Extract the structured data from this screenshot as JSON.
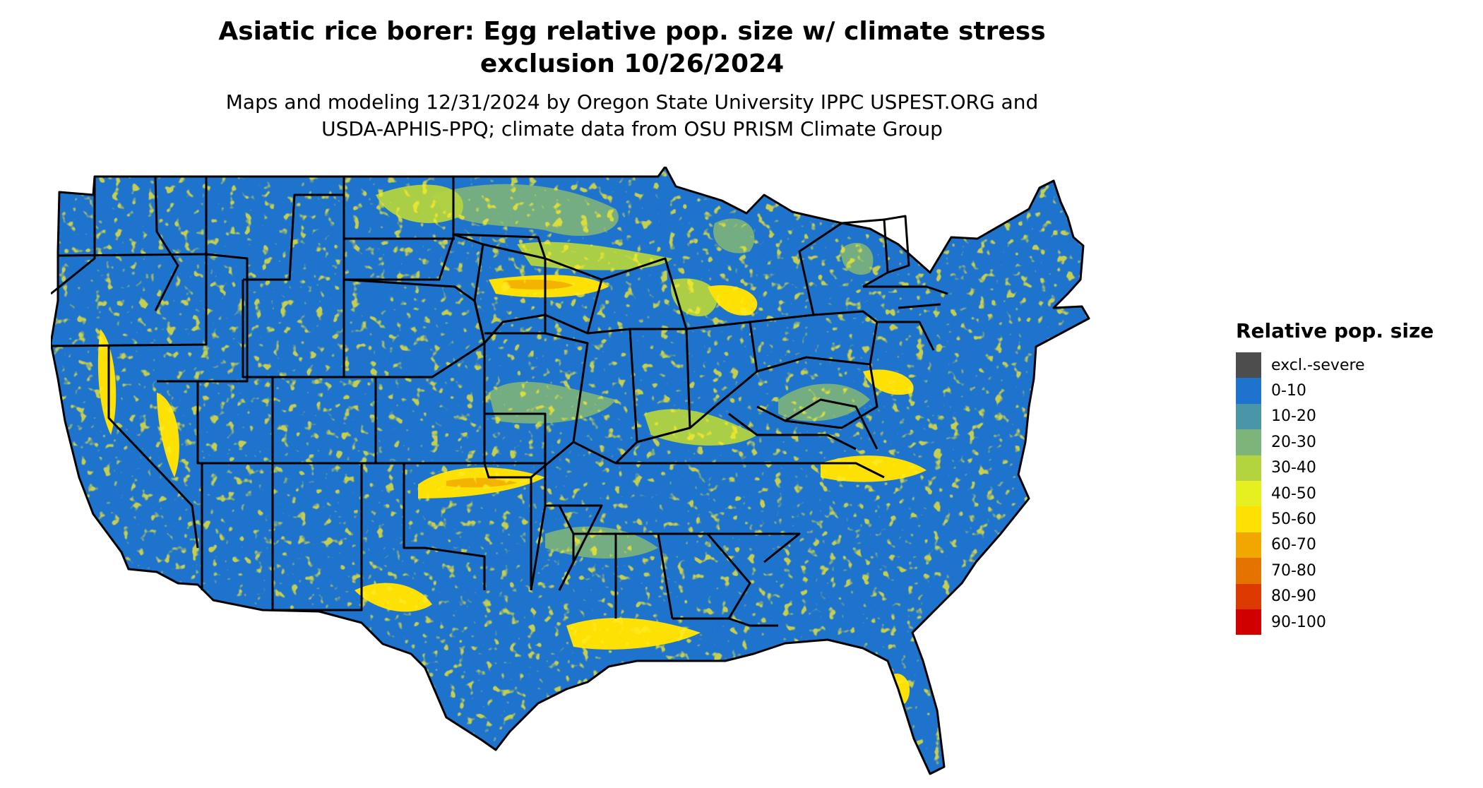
{
  "title_line1": "Asiatic rice borer: Egg relative pop. size w/ climate stress",
  "title_line2": "exclusion 10/26/2024",
  "subtitle_line1": "Maps and modeling 12/31/2024 by Oregon State University IPPC USPEST.ORG and",
  "subtitle_line2": "USDA-APHIS-PPQ; climate data from OSU PRISM Climate Group",
  "legend": {
    "title": "Relative pop. size",
    "items": [
      {
        "label": "excl.-severe",
        "color": "#4d4d4d"
      },
      {
        "label": "0-10",
        "color": "#1e73cc"
      },
      {
        "label": "10-20",
        "color": "#4a95a8"
      },
      {
        "label": "20-30",
        "color": "#7db47a"
      },
      {
        "label": "30-40",
        "color": "#b3d33f"
      },
      {
        "label": "40-50",
        "color": "#e6ef1f"
      },
      {
        "label": "50-60",
        "color": "#fde004"
      },
      {
        "label": "60-70",
        "color": "#f0a800"
      },
      {
        "label": "70-80",
        "color": "#e57300"
      },
      {
        "label": "80-90",
        "color": "#dc3a00"
      },
      {
        "label": "90-100",
        "color": "#d10000"
      }
    ]
  },
  "colors": {
    "background": "#ffffff",
    "borders": "#000000"
  }
}
